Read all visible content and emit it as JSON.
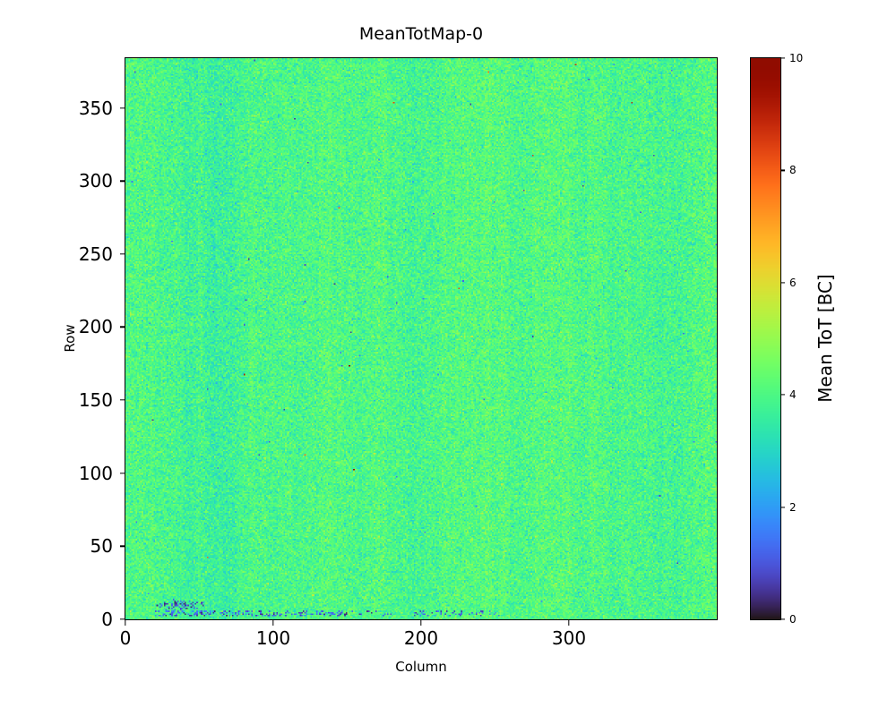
{
  "figure": {
    "background": "#ffffff",
    "text_color": "#000000"
  },
  "chart_data": {
    "type": "heatmap",
    "title": "MeanTotMap-0",
    "xlabel": "Column",
    "ylabel": "Row",
    "xlim": [
      0,
      400
    ],
    "ylim": [
      0,
      384
    ],
    "xticks": [
      0,
      100,
      200,
      300
    ],
    "yticks": [
      0,
      50,
      100,
      150,
      200,
      250,
      300,
      350
    ],
    "grid": {
      "cols": 400,
      "rows": 384,
      "grid_lines": false
    },
    "values": {
      "mean": 4.0,
      "std": 0.45,
      "min": 0,
      "max": 10
    },
    "colormap": "turbo",
    "colorbar": {
      "label": "Mean ToT [BC]",
      "ticks": [
        0,
        2,
        4,
        6,
        8,
        10
      ],
      "range": [
        0,
        10
      ],
      "position": "right"
    },
    "anomalies": {
      "cluster": {
        "row_range": [
          4,
          14
        ],
        "col_range": [
          18,
          58
        ]
      },
      "streak": {
        "row_range": [
          2,
          5
        ],
        "col_range": [
          20,
          255
        ]
      }
    },
    "seed": 1337
  }
}
